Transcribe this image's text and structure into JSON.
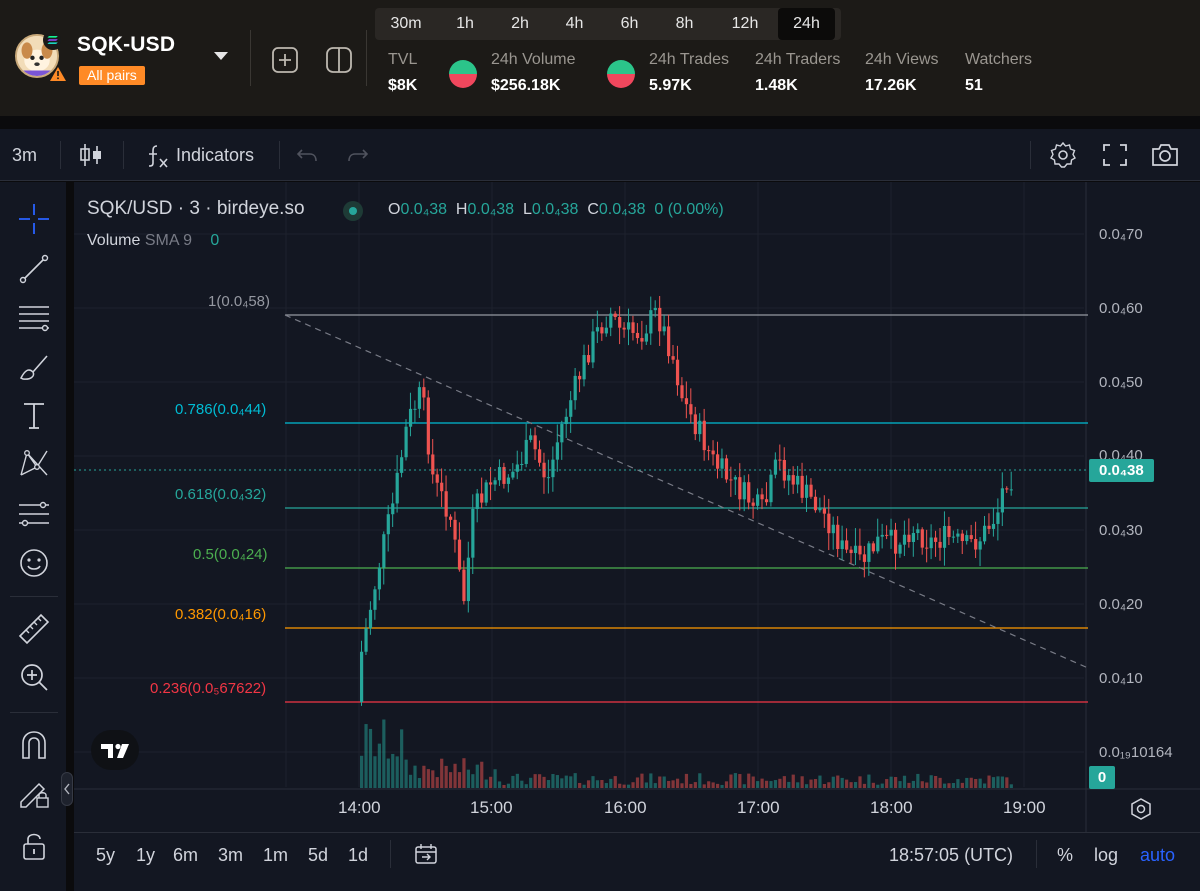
{
  "header": {
    "pair_name": "SQK-USD",
    "all_pairs_label": "All pairs",
    "timeframes": [
      "30m",
      "1h",
      "2h",
      "4h",
      "6h",
      "8h",
      "12h",
      "24h"
    ],
    "active_timeframe": "24h",
    "stats": [
      {
        "label": "TVL",
        "value": "$8K"
      },
      {
        "label": "24h Volume",
        "value": "$256.18K"
      },
      {
        "label": "24h Trades",
        "value": "5.97K"
      },
      {
        "label": "24h Traders",
        "value": "1.48K"
      },
      {
        "label": "24h Views",
        "value": "17.26K"
      },
      {
        "label": "Watchers",
        "value": "51"
      }
    ]
  },
  "toolbar": {
    "interval": "3m",
    "indicators_label": "Indicators"
  },
  "legend": {
    "symbol": "SQK/USD · 3 · birdeye.so",
    "o_key": "O",
    "o_val": "0.0₄38",
    "h_key": "H",
    "h_val": "0.0₄38",
    "l_key": "L",
    "l_val": "0.0₄38",
    "c_key": "C",
    "c_val": "0.0₄38",
    "change": "0 (0.00%)",
    "volume_label": "Volume",
    "volume_sma": "SMA 9",
    "volume_value": "0"
  },
  "price_axis": [
    "0.0₄70",
    "0.0₄60",
    "0.0₄50",
    "0.0₄40",
    "0.0₄30",
    "0.0₄20",
    "0.0₄10",
    "0.0₁₉10164"
  ],
  "current_price": "0.0₄38",
  "volume_tag": "0",
  "fib_levels": [
    {
      "label": "1(0.0₄58)",
      "color": "#9598a1"
    },
    {
      "label": "0.786(0.0₄44)",
      "color": "#00bcd4"
    },
    {
      "label": "0.618(0.0₄32)",
      "color": "#26a69a"
    },
    {
      "label": "0.5(0.0₄24)",
      "color": "#4caf50"
    },
    {
      "label": "0.382(0.0₄16)",
      "color": "#ff9800"
    },
    {
      "label": "0.236(0.0₅67622)",
      "color": "#f23645"
    }
  ],
  "time_axis": [
    "14:00",
    "15:00",
    "16:00",
    "17:00",
    "18:00",
    "19:00"
  ],
  "bottom_bar": {
    "ranges": [
      "5y",
      "1y",
      "6m",
      "3m",
      "1m",
      "5d",
      "1d"
    ],
    "clock": "18:57:05 (UTC)",
    "percent_label": "%",
    "log_label": "log",
    "auto_label": "auto"
  },
  "colors": {
    "up": "#26a69a",
    "down": "#ef5350",
    "accent": "#2962ff",
    "all_pairs_bg": "#ff8a26"
  }
}
